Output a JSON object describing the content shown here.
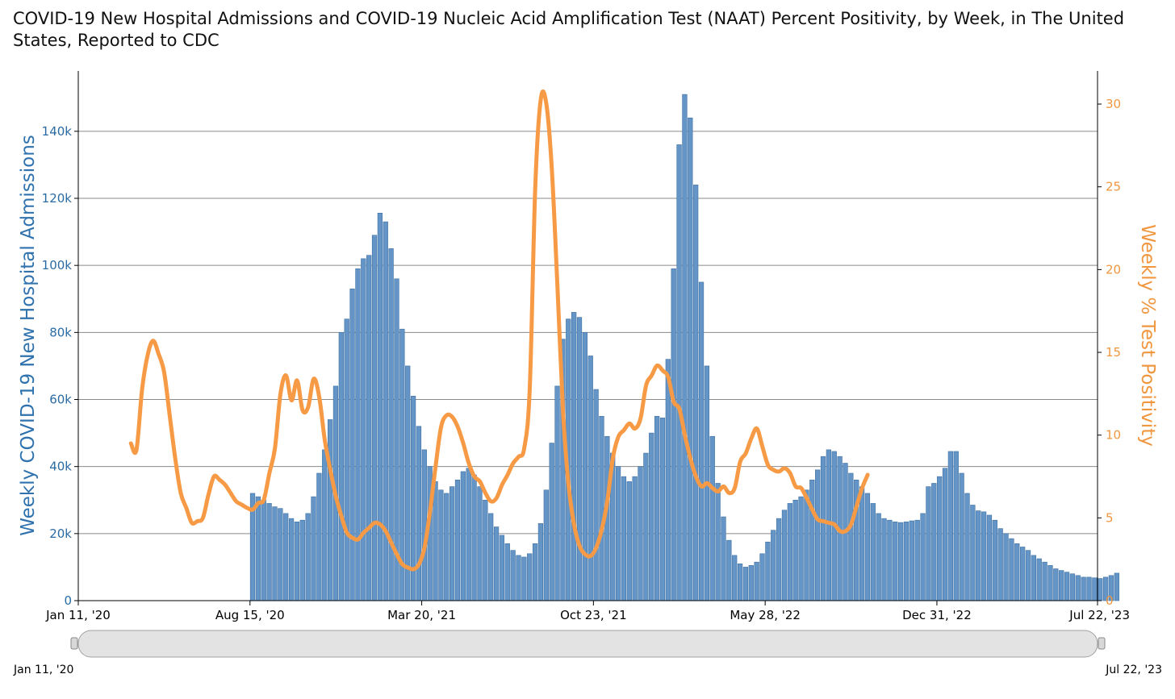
{
  "title": "COVID-19 New Hospital Admissions and COVID-19 Nucleic Acid Amplification Test (NAAT) Percent Positivity, by Week, in The United States, Reported to CDC",
  "colors": {
    "bars": "#6495c6",
    "bar_edge": "#3f71a3",
    "line": "#f79a45",
    "grid": "#8a8a8a",
    "left_axis_text": "#2a6ba3",
    "right_axis_text": "#f0963f"
  },
  "chart_data": {
    "type": "bar+line",
    "xlabel": "",
    "ylabel_left": "Weekly COVID-19 New Hospital Admissions",
    "ylabel_right": "Weekly % Test Positivity",
    "ylim_left": [
      0,
      158000
    ],
    "ylim_right": [
      0,
      32
    ],
    "left_ticks": [
      {
        "value": 0,
        "label": "0"
      },
      {
        "value": 20000,
        "label": "20k"
      },
      {
        "value": 40000,
        "label": "40k"
      },
      {
        "value": 60000,
        "label": "60k"
      },
      {
        "value": 80000,
        "label": "80k"
      },
      {
        "value": 100000,
        "label": "100k"
      },
      {
        "value": 120000,
        "label": "120k"
      },
      {
        "value": 140000,
        "label": "140k"
      }
    ],
    "right_ticks": [
      {
        "value": 0,
        "label": "0"
      },
      {
        "value": 5,
        "label": "5"
      },
      {
        "value": 10,
        "label": "10"
      },
      {
        "value": 15,
        "label": "15"
      },
      {
        "value": 20,
        "label": "20"
      },
      {
        "value": 25,
        "label": "25"
      },
      {
        "value": 30,
        "label": "30"
      }
    ],
    "x_ticks": [
      {
        "week": 0,
        "label": "Jan 11, '20"
      },
      {
        "week": 31,
        "label": "Aug 15, '20"
      },
      {
        "week": 62,
        "label": "Mar 20, '21"
      },
      {
        "week": 93,
        "label": "Oct 23, '21"
      },
      {
        "week": 124,
        "label": "May 28, '22"
      },
      {
        "week": 155,
        "label": "Dec 31, '22"
      },
      {
        "week": 184,
        "label": "Jul 22, '23"
      }
    ],
    "total_weeks": 184,
    "grid": true,
    "admissions": {
      "name": "Weekly COVID-19 New Hospital Admissions",
      "start_week": 31,
      "values": [
        32000,
        31000,
        30000,
        29000,
        28000,
        27500,
        26000,
        24500,
        23500,
        24000,
        26000,
        31000,
        38000,
        45000,
        54000,
        64000,
        80000,
        84000,
        93000,
        99000,
        102000,
        103000,
        109000,
        115600,
        113000,
        105000,
        96000,
        81000,
        70000,
        61000,
        52000,
        45000,
        40000,
        35500,
        33000,
        32000,
        34000,
        36000,
        38500,
        39500,
        37500,
        34000,
        30000,
        26000,
        22000,
        19500,
        17000,
        15000,
        13500,
        13000,
        14000,
        17000,
        23000,
        33000,
        47000,
        64000,
        78000,
        84000,
        86000,
        84500,
        80000,
        73000,
        63000,
        55000,
        49000,
        44000,
        40000,
        37000,
        35500,
        37000,
        40000,
        44000,
        50000,
        55000,
        54500,
        72000,
        99000,
        136000,
        151000,
        144000,
        124000,
        95000,
        70000,
        49000,
        35000,
        25000,
        18000,
        13500,
        11000,
        10000,
        10500,
        11500,
        14000,
        17500,
        21000,
        24500,
        27000,
        29000,
        30000,
        31000,
        33000,
        36000,
        39000,
        43000,
        45000,
        44500,
        43000,
        41000,
        38000,
        36000,
        34000,
        32000,
        29000,
        26000,
        24500,
        24000,
        23500,
        23300,
        23500,
        23800,
        24000,
        26000,
        34000,
        35000,
        37000,
        39500,
        44500,
        44500,
        38000,
        32000,
        28500,
        26800,
        26500,
        25500,
        24000,
        21500,
        20000,
        18500,
        17000,
        16000,
        15000,
        13500,
        12500,
        11500,
        10500,
        9500,
        9000,
        8500,
        8000,
        7500,
        7000,
        7000,
        6800,
        6600,
        7000,
        7500,
        8200
      ]
    },
    "positivity": {
      "name": "Weekly % Test Positivity",
      "start_week": 9,
      "values": [
        9.5,
        9.1,
        12.7,
        14.8,
        15.7,
        14.9,
        13.8,
        11.2,
        8.6,
        6.5,
        5.6,
        4.7,
        4.8,
        5.0,
        6.4,
        7.5,
        7.3,
        7.0,
        6.5,
        6.0,
        5.8,
        5.6,
        5.5,
        5.9,
        6.1,
        7.7,
        9.2,
        12.5,
        13.6,
        12.1,
        13.3,
        11.5,
        11.7,
        13.4,
        12.3,
        9.7,
        7.9,
        6.3,
        5.1,
        4.1,
        3.8,
        3.7,
        4.1,
        4.4,
        4.7,
        4.6,
        4.2,
        3.5,
        2.8,
        2.2,
        2.0,
        1.9,
        2.2,
        3.2,
        5.4,
        8.1,
        10.5,
        11.2,
        11.1,
        10.5,
        9.5,
        8.3,
        7.5,
        7.2,
        6.5,
        6.0,
        6.2,
        7.0,
        7.6,
        8.3,
        8.7,
        9.2,
        12.8,
        25.0,
        30.3,
        30.0,
        26.0,
        19.0,
        11.5,
        7.0,
        4.6,
        3.3,
        2.8,
        2.7,
        3.2,
        4.3,
        6.0,
        8.6,
        9.9,
        10.3,
        10.7,
        10.4,
        11.0,
        13.0,
        13.6,
        14.2,
        13.9,
        13.5,
        12.0,
        11.6,
        10.0,
        8.6,
        7.5,
        6.9,
        7.1,
        6.8,
        6.6,
        6.9,
        6.5,
        6.8,
        8.4,
        8.9,
        9.8,
        10.4,
        9.3,
        8.2,
        7.9,
        7.8,
        8.0,
        7.7,
        6.9,
        6.8,
        6.2,
        5.5,
        4.9,
        4.8,
        4.7,
        4.6,
        4.2,
        4.2,
        4.6,
        5.7,
        6.8,
        7.6
      ]
    }
  },
  "navigator": {
    "start_label": "Jan 11, '20",
    "end_label": "Jul 22, '23"
  }
}
